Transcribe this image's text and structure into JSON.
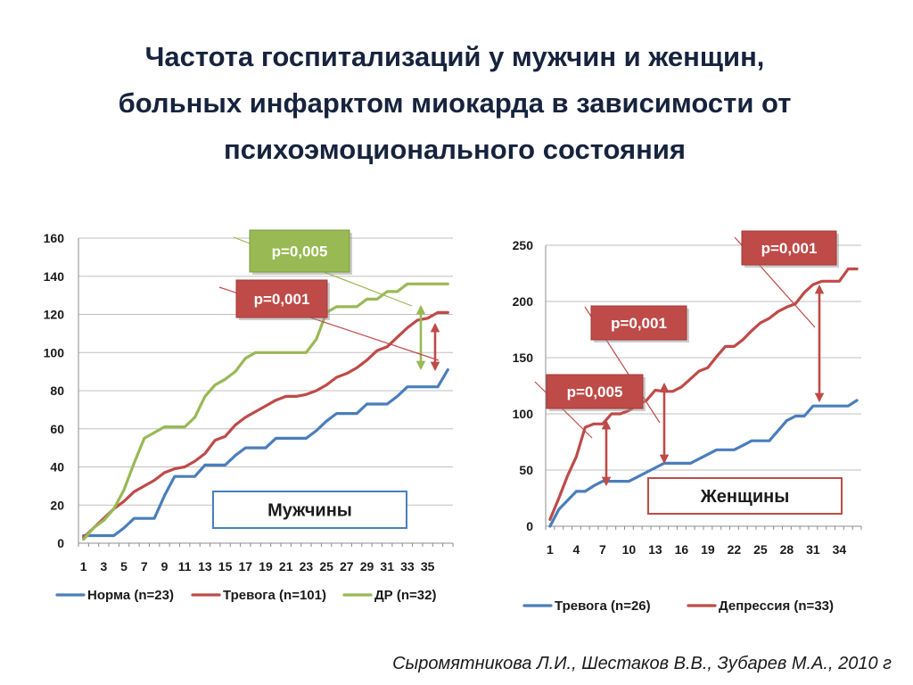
{
  "title_lines": [
    "Частота госпитализаций у мужчин и женщин,",
    "больных инфарктом миокарда в зависимости от",
    "психоэмоционального состояния"
  ],
  "citation": "Сыромятникова Л.И., Шестаков В.В., Зубарев М.А., 2010 г",
  "colors": {
    "blue": "#4a7ebb",
    "red": "#be4b48",
    "green": "#98b954",
    "grid": "#bfbfbf"
  },
  "chart_data": [
    {
      "type": "line",
      "label": "Мужчины",
      "x_tick_labels": [
        "1",
        "3",
        "5",
        "7",
        "9",
        "11",
        "13",
        "15",
        "17",
        "19",
        "21",
        "23",
        "25",
        "27",
        "29",
        "31",
        "33",
        "35"
      ],
      "x": [
        1,
        2,
        3,
        4,
        5,
        6,
        7,
        8,
        9,
        10,
        11,
        12,
        13,
        14,
        15,
        16,
        17,
        18,
        19,
        20,
        21,
        22,
        23,
        24,
        25,
        26,
        27,
        28,
        29,
        30,
        31,
        32,
        33,
        34,
        35,
        36,
        37
      ],
      "ylim": [
        0,
        160
      ],
      "yticks": [
        0,
        20,
        40,
        60,
        80,
        100,
        120,
        140,
        160
      ],
      "grid": true,
      "legend_position": "bottom",
      "series": [
        {
          "name": "Норма (n=23)",
          "color": "#4a7ebb",
          "values": [
            4,
            4,
            4,
            4,
            8,
            13,
            13,
            13,
            25,
            35,
            35,
            35,
            41,
            41,
            41,
            46,
            50,
            50,
            50,
            55,
            55,
            55,
            55,
            59,
            64,
            68,
            68,
            68,
            73,
            73,
            73,
            77,
            82,
            82,
            82,
            82,
            91
          ]
        },
        {
          "name": "Тревога (n=101)",
          "color": "#be4b48",
          "values": [
            3,
            8,
            13,
            18,
            22,
            27,
            30,
            33,
            37,
            39,
            40,
            43,
            47,
            54,
            56,
            62,
            66,
            69,
            72,
            75,
            77,
            77,
            78,
            80,
            83,
            87,
            89,
            92,
            96,
            101,
            103,
            108,
            113,
            117,
            118,
            121,
            121
          ]
        },
        {
          "name": "ДР (n=32)",
          "color": "#98b954",
          "values": [
            2,
            8,
            12,
            18,
            28,
            42,
            55,
            58,
            61,
            61,
            61,
            66,
            77,
            83,
            86,
            90,
            97,
            100,
            100,
            100,
            100,
            100,
            100,
            107,
            121,
            124,
            124,
            124,
            128,
            128,
            132,
            132,
            136,
            136,
            136,
            136,
            136
          ]
        }
      ],
      "annotations": [
        {
          "text": "р=0,005",
          "color": "#98b954"
        },
        {
          "text": "р=0,001",
          "color": "#be4b48"
        }
      ]
    },
    {
      "type": "line",
      "label": "Женщины",
      "x_tick_labels": [
        "1",
        "4",
        "7",
        "10",
        "13",
        "16",
        "19",
        "22",
        "25",
        "28",
        "31",
        "34"
      ],
      "x": [
        1,
        2,
        3,
        4,
        5,
        6,
        7,
        8,
        9,
        10,
        11,
        12,
        13,
        14,
        15,
        16,
        17,
        18,
        19,
        20,
        21,
        22,
        23,
        24,
        25,
        26,
        27,
        28,
        29,
        30,
        31,
        32,
        33,
        34,
        35,
        36
      ],
      "ylim": [
        0,
        250
      ],
      "yticks": [
        0,
        50,
        100,
        150,
        200,
        250
      ],
      "grid": true,
      "legend_position": "bottom",
      "series": [
        {
          "name": "Тревога (n=26)",
          "color": "#4a7ebb",
          "values": [
            0,
            15,
            23,
            31,
            31,
            36,
            40,
            40,
            40,
            40,
            44,
            48,
            52,
            56,
            56,
            56,
            56,
            60,
            64,
            68,
            68,
            68,
            72,
            76,
            76,
            76,
            85,
            94,
            98,
            98,
            107,
            107,
            107,
            107,
            107,
            112
          ]
        },
        {
          "name": "Депрессия (n=33)",
          "color": "#be4b48",
          "values": [
            6,
            25,
            45,
            62,
            88,
            91,
            91,
            100,
            100,
            103,
            108,
            112,
            121,
            120,
            120,
            124,
            131,
            138,
            141,
            151,
            160,
            160,
            166,
            174,
            181,
            185,
            191,
            195,
            198,
            208,
            215,
            218,
            218,
            218,
            229,
            229
          ]
        }
      ],
      "annotations": [
        {
          "text": "р=0,001",
          "color": "#be4b48"
        },
        {
          "text": "р=0,001",
          "color": "#be4b48"
        },
        {
          "text": "р=0,005",
          "color": "#be4b48"
        }
      ]
    }
  ]
}
